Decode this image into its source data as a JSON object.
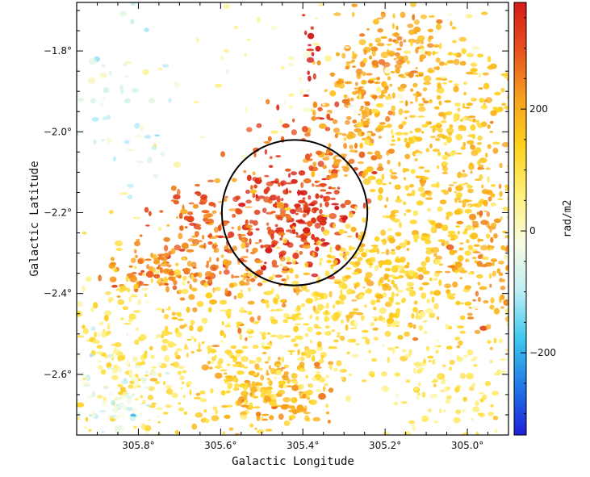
{
  "chart_data": {
    "type": "heatmap",
    "title": "",
    "xlabel": "Galactic Longitude",
    "ylabel": "Galactic Latitude",
    "xlim": [
      305.95,
      304.9
    ],
    "ylim": [
      -2.75,
      -1.68
    ],
    "x_ticks": [
      {
        "value": 305.8,
        "label": "305.8°"
      },
      {
        "value": 305.6,
        "label": "305.6°"
      },
      {
        "value": 305.4,
        "label": "305.4°"
      },
      {
        "value": 305.2,
        "label": "305.2°"
      },
      {
        "value": 305.0,
        "label": "305.0°"
      }
    ],
    "y_ticks": [
      {
        "value": -1.8,
        "label": "−1.8°"
      },
      {
        "value": -2.0,
        "label": "−2.0°"
      },
      {
        "value": -2.2,
        "label": "−2.2°"
      },
      {
        "value": -2.4,
        "label": "−2.4°"
      },
      {
        "value": -2.6,
        "label": "−2.6°"
      }
    ],
    "colorbar": {
      "label": "rad/m2",
      "range": [
        -335,
        375
      ],
      "ticks": [
        {
          "value": 200,
          "label": "200"
        },
        {
          "value": 0,
          "label": "0"
        },
        {
          "value": -200,
          "label": "−200"
        }
      ],
      "colors": [
        "#1f1fd6",
        "#1f78e8",
        "#3fc8ee",
        "#bdeef5",
        "#f8fbe0",
        "#fff07a",
        "#ffd21c",
        "#f7a21f",
        "#e8521e",
        "#d41a1a"
      ]
    },
    "circle": {
      "center_l": 305.42,
      "center_b": -2.2,
      "radius_deg": 0.18
    },
    "regions": [
      {
        "l": 305.43,
        "b": -2.22,
        "spread_l": 0.09,
        "spread_b": 0.07,
        "value": 330,
        "count": 260
      },
      {
        "l": 305.57,
        "b": -2.3,
        "spread_l": 0.06,
        "spread_b": 0.09,
        "value": 240,
        "count": 120
      },
      {
        "l": 305.73,
        "b": -2.34,
        "spread_l": 0.06,
        "spread_b": 0.04,
        "value": 250,
        "count": 110
      },
      {
        "l": 305.67,
        "b": -2.2,
        "spread_l": 0.04,
        "spread_b": 0.05,
        "value": 270,
        "count": 40
      },
      {
        "l": 305.29,
        "b": -2.02,
        "spread_l": 0.05,
        "spread_b": 0.08,
        "value": 230,
        "count": 90
      },
      {
        "l": 305.24,
        "b": -1.88,
        "spread_l": 0.06,
        "spread_b": 0.08,
        "value": 210,
        "count": 110
      },
      {
        "l": 305.15,
        "b": -1.78,
        "spread_l": 0.05,
        "spread_b": 0.06,
        "value": 200,
        "count": 80
      },
      {
        "l": 305.02,
        "b": -1.95,
        "spread_l": 0.1,
        "spread_b": 0.1,
        "value": 160,
        "count": 220
      },
      {
        "l": 305.08,
        "b": -2.15,
        "spread_l": 0.1,
        "spread_b": 0.12,
        "value": 150,
        "count": 240
      },
      {
        "l": 305.2,
        "b": -2.35,
        "spread_l": 0.1,
        "spread_b": 0.08,
        "value": 140,
        "count": 220
      },
      {
        "l": 304.96,
        "b": -2.32,
        "spread_l": 0.04,
        "spread_b": 0.1,
        "value": 210,
        "count": 100
      },
      {
        "l": 305.46,
        "b": -2.64,
        "spread_l": 0.06,
        "spread_b": 0.05,
        "value": 190,
        "count": 140
      },
      {
        "l": 305.6,
        "b": -2.58,
        "spread_l": 0.12,
        "spread_b": 0.1,
        "value": 120,
        "count": 240
      },
      {
        "l": 305.35,
        "b": -2.48,
        "spread_l": 0.12,
        "spread_b": 0.1,
        "value": 110,
        "count": 200
      },
      {
        "l": 305.82,
        "b": -2.5,
        "spread_l": 0.08,
        "spread_b": 0.12,
        "value": 90,
        "count": 150
      },
      {
        "l": 305.05,
        "b": -2.6,
        "spread_l": 0.1,
        "spread_b": 0.1,
        "value": 80,
        "count": 150
      },
      {
        "l": 305.85,
        "b": -2.65,
        "spread_l": 0.06,
        "spread_b": 0.06,
        "value": -40,
        "count": 90
      },
      {
        "l": 305.85,
        "b": -1.95,
        "spread_l": 0.08,
        "spread_b": 0.1,
        "value": -60,
        "count": 60
      },
      {
        "l": 305.4,
        "b": -1.85,
        "spread_l": 0.2,
        "spread_b": 0.1,
        "value": 20,
        "count": 60
      },
      {
        "l": 305.38,
        "b": -1.8,
        "spread_l": 0.01,
        "spread_b": 0.05,
        "value": 340,
        "count": 14
      },
      {
        "l": 305.42,
        "b": -2.0,
        "spread_l": 0.05,
        "spread_b": 0.04,
        "value": 300,
        "count": 20
      }
    ]
  }
}
